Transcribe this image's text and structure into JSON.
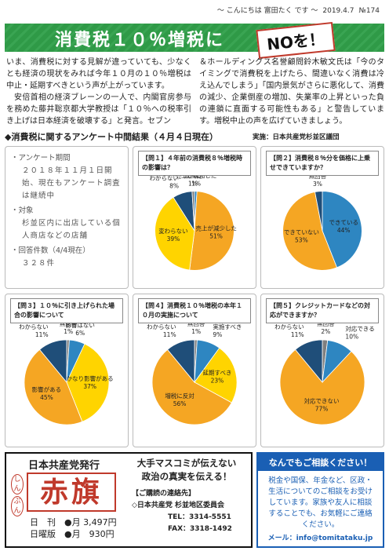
{
  "header": {
    "greeting": "～ こんにちは 富田たく です ～",
    "date": "2019.4.7",
    "issue": "№174"
  },
  "headline": {
    "text": "消費税１０％増税に",
    "badge": "NOを！"
  },
  "article": {
    "columns": [
      [
        "いま、消費税に対する見解が違っていても、少なくとも経済の現状をみれば今年１０月の１０％増税は中止・延期すべきという声が上がっています。",
        "安倍首相の経済ブレーンの一人で、内閣官房参与を務めた藤井聡京都大学教授は「１０％への税率引き上げは日本経済を破壊する」と発言。セブン"
      ],
      [
        "＆ホールディングス名誉顧問鈴木敏文氏は「今のタイミングで消費税を上げたら、間違いなく消費は冷え込んでしまう」「国内景気がさらに悪化して、消費の減少、企業倒産の増加、失業率の上昇といった負の連鎖に直面する可能性もある」と警告しています。増税中止の声を広げていきましょう。"
      ]
    ]
  },
  "survey": {
    "title": "◆消費税に関するアンケート中間結果（４月４日現在）",
    "conducted_by": "実施：日本共産党杉並区議団",
    "details": [
      {
        "label": "・アンケート期間",
        "text": "２０１８年１１月１日開始、現在もアンケート調査は継続中"
      },
      {
        "label": "・対象",
        "text": "杉並区内に出店している個人商店などの店舗"
      },
      {
        "label": "・回答件数（4/4現在）",
        "text": "３２８件"
      }
    ]
  },
  "chart_data": [
    {
      "type": "pie",
      "title": "【問１】４年前の消費税８％増税時の影響は？",
      "categories": [
        "売上が増加した",
        "売上が減少した",
        "変わらない",
        "わからない",
        "無回答"
      ],
      "values": [
        1,
        51,
        39,
        8,
        1
      ],
      "value_labels": [
        "1%",
        "51%",
        "39%",
        "8%",
        "1%"
      ],
      "colors": [
        "#2e86c1",
        "#f5a623",
        "#ffd400",
        "#1f4e79",
        "#7f7f7f"
      ]
    },
    {
      "type": "pie",
      "title": "【問２】消費税８％分を価格に上乗せできていますか？",
      "categories": [
        "できている",
        "できていない",
        "無回答"
      ],
      "values": [
        44,
        53,
        3
      ],
      "value_labels": [
        "44%",
        "53%",
        "3%"
      ],
      "colors": [
        "#2e86c1",
        "#f5a623",
        "#1f4e79"
      ]
    },
    {
      "type": "pie",
      "title": "【問３】１０％に引き上げられた場合の影響について",
      "categories": [
        "無回答",
        "影響はない",
        "かなり影響がある",
        "影響がある",
        "わからない"
      ],
      "values": [
        1,
        6,
        37,
        45,
        11
      ],
      "value_labels": [
        "1%",
        "6%",
        "37%",
        "45%",
        "11%"
      ],
      "colors": [
        "#7f7f7f",
        "#2e86c1",
        "#ffd400",
        "#f5a623",
        "#1f4e79"
      ]
    },
    {
      "type": "pie",
      "title": "【問４】消費税１０％増税の本年１０月の実施について",
      "categories": [
        "無回答",
        "実施すべき",
        "延期すべき",
        "増税に反対",
        "わからない"
      ],
      "values": [
        1,
        9,
        23,
        56,
        11
      ],
      "value_labels": [
        "1%",
        "9%",
        "23%",
        "56%",
        "11%"
      ],
      "colors": [
        "#7f7f7f",
        "#2e86c1",
        "#ffd400",
        "#f5a623",
        "#1f4e79"
      ]
    },
    {
      "type": "pie",
      "title": "【問５】クレジットカードなどの対応ができますか？",
      "categories": [
        "無回答",
        "対応できる",
        "対応できない",
        "わからない"
      ],
      "values": [
        2,
        10,
        77,
        11
      ],
      "value_labels": [
        "2%",
        "10%",
        "77%",
        "11%"
      ],
      "colors": [
        "#7f7f7f",
        "#2e86c1",
        "#f5a623",
        "#1f4e79"
      ]
    }
  ],
  "akahata": {
    "publisher": "日本共産党発行",
    "slogan": [
      "大手マスコミが伝えない",
      "政治の真実を伝える！"
    ],
    "logo_kana": [
      "しん",
      "ぶん"
    ],
    "logo": "赤旗",
    "prices": [
      {
        "edition": "日　刊",
        "price": "●月 3,497円"
      },
      {
        "edition": "日曜版",
        "price": "●月　930円"
      }
    ],
    "contact_title": "【ご購読の連絡先】",
    "office": "◇日本共産党 杉並地区委員会",
    "tel": "TEL：3314-5551",
    "fax": "FAX：3318-1492"
  },
  "consultation": {
    "title": "なんでもご相談ください！",
    "text": "税金や国保、年金など、区政・生活についてのご相談をお受けしています。家族や友人に相談することでも、お気軽にご連絡ください。",
    "email": "メール：info@tomitataku.jp"
  }
}
